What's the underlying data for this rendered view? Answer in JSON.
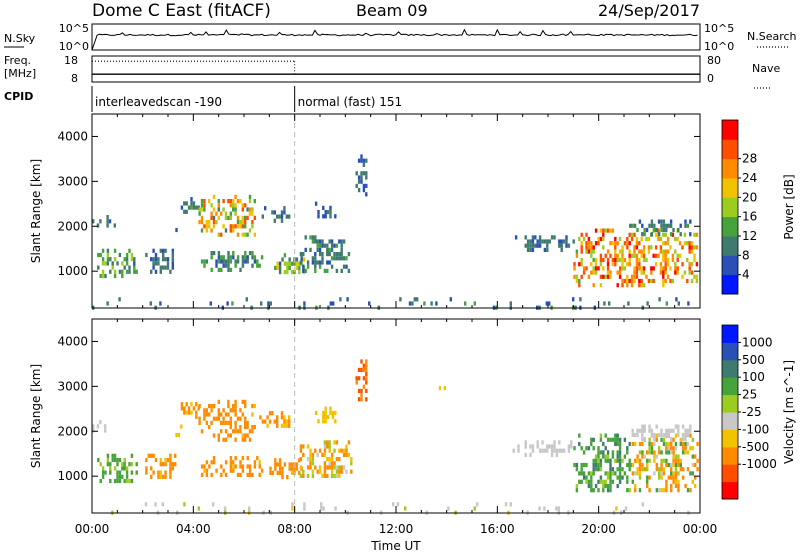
{
  "header": {
    "title": "Dome C East (fitACF)",
    "beam": "Beam 09",
    "date": "24/Sep/2017"
  },
  "top_panels": {
    "nsky_label": "N.Sky",
    "nsearch_label": "N.Search",
    "count_ticks_left": [
      "10^5",
      "10^0"
    ],
    "count_ticks_right": [
      "10^5",
      "10^0"
    ],
    "freq_label": "Freq.",
    "freq_unit": "[MHz]",
    "freq_ticks": [
      "18",
      "8"
    ],
    "nave_label": "Nave",
    "nave_ticks": [
      "80",
      "0"
    ],
    "cpid_label": "CPID",
    "cpid_segments": [
      {
        "start": 0,
        "end": 8,
        "label": "interleavedscan -190"
      },
      {
        "start": 8,
        "end": 24,
        "label": "normal (fast) 151"
      }
    ],
    "nsky_level": 0.55,
    "freq_dotted_level": 0.8,
    "freq_dotted_end": 8,
    "freq_solid_level": 0.3,
    "nave_level": 0.3
  },
  "x_axis": {
    "label": "Time UT",
    "ticks": [
      0,
      4,
      8,
      12,
      16,
      20,
      24
    ],
    "tick_labels": [
      "00:00",
      "04:00",
      "08:00",
      "12:00",
      "16:00",
      "20:00",
      "00:00"
    ],
    "range": [
      0,
      24
    ]
  },
  "chart_data": [
    {
      "type": "heatmap",
      "ylabel": "Slant Range [km]",
      "ylim": [
        180,
        4500
      ],
      "yticks": [
        1000,
        2000,
        3000,
        4000
      ],
      "colorbar": {
        "label": "Power [dB]",
        "ticks": [
          "4",
          "8",
          "12",
          "16",
          "20",
          "24",
          "28"
        ],
        "range": [
          0,
          32
        ],
        "colors": [
          "#0018ff",
          "#2a50b8",
          "#3f7a6e",
          "#46a33c",
          "#9ccc20",
          "#f2c200",
          "#ff8c00",
          "#ff4e00",
          "#ff0000"
        ]
      },
      "blobs": [
        {
          "t": [
            0.0,
            1.1
          ],
          "r": [
            2000,
            2250
          ],
          "v": [
            6,
            10
          ]
        },
        {
          "t": [
            0.2,
            1.8
          ],
          "r": [
            850,
            1500
          ],
          "v": [
            6,
            16
          ]
        },
        {
          "t": [
            2.1,
            3.3
          ],
          "r": [
            1000,
            1500
          ],
          "v": [
            6,
            10
          ]
        },
        {
          "t": [
            3.1,
            3.6
          ],
          "r": [
            1900,
            2150
          ],
          "v": [
            6,
            10
          ]
        },
        {
          "t": [
            3.5,
            4.2
          ],
          "r": [
            2300,
            2650
          ],
          "v": [
            6,
            12
          ]
        },
        {
          "t": [
            4.2,
            6.4
          ],
          "r": [
            1800,
            2700
          ],
          "v": [
            10,
            28
          ]
        },
        {
          "t": [
            4.3,
            6.7
          ],
          "r": [
            1050,
            1450
          ],
          "v": [
            6,
            14
          ]
        },
        {
          "t": [
            6.6,
            7.8
          ],
          "r": [
            2150,
            2450
          ],
          "v": [
            6,
            10
          ]
        },
        {
          "t": [
            7.0,
            8.4
          ],
          "r": [
            950,
            1400
          ],
          "v": [
            6,
            20
          ]
        },
        {
          "t": [
            8.2,
            10.2
          ],
          "r": [
            1000,
            1800
          ],
          "v": [
            6,
            12
          ]
        },
        {
          "t": [
            8.8,
            9.6
          ],
          "r": [
            2250,
            2550
          ],
          "v": [
            6,
            8
          ]
        },
        {
          "t": [
            10.4,
            10.8
          ],
          "r": [
            2700,
            3600
          ],
          "v": [
            6,
            8
          ]
        },
        {
          "t": [
            13.5,
            14.0
          ],
          "r": [
            2950,
            3100
          ],
          "v": [
            6,
            10
          ]
        },
        {
          "t": [
            16.6,
            19.0
          ],
          "r": [
            1500,
            1800
          ],
          "v": [
            6,
            10
          ]
        },
        {
          "t": [
            19.0,
            23.9
          ],
          "r": [
            650,
            1950
          ],
          "v": [
            14,
            30
          ]
        },
        {
          "t": [
            21.2,
            23.9
          ],
          "r": [
            1850,
            2150
          ],
          "v": [
            6,
            12
          ]
        },
        {
          "t": [
            0.0,
            24.0
          ],
          "r": [
            190,
            420
          ],
          "v": [
            4,
            12
          ]
        }
      ]
    },
    {
      "type": "heatmap",
      "ylabel": "Slant Range [km]",
      "ylim": [
        180,
        4500
      ],
      "yticks": [
        1000,
        2000,
        3000,
        4000
      ],
      "colorbar": {
        "label": "Velocity [m s^-1]",
        "ticks": [
          "1000",
          "500",
          "100",
          "25",
          "-25",
          "-100",
          "-500",
          "-1000"
        ],
        "range": [
          -1200,
          1200
        ],
        "colors": [
          "#ff0000",
          "#ff4e00",
          "#ff8c00",
          "#f2c200",
          "#c8c8c8",
          "#9ccc20",
          "#46a33c",
          "#3f7a6e",
          "#2a50b8",
          "#0018ff"
        ]
      },
      "blobs": [
        {
          "t": [
            0.0,
            1.1
          ],
          "r": [
            2000,
            2250
          ],
          "v": [
            -10,
            10
          ]
        },
        {
          "t": [
            0.2,
            1.8
          ],
          "r": [
            850,
            1500
          ],
          "v": [
            40,
            300
          ]
        },
        {
          "t": [
            2.1,
            3.3
          ],
          "r": [
            1000,
            1500
          ],
          "v": [
            -300,
            -60
          ]
        },
        {
          "t": [
            3.1,
            3.6
          ],
          "r": [
            1900,
            2150
          ],
          "v": [
            -80,
            -40
          ]
        },
        {
          "t": [
            3.5,
            4.2
          ],
          "r": [
            2300,
            2650
          ],
          "v": [
            -300,
            -60
          ]
        },
        {
          "t": [
            4.2,
            6.4
          ],
          "r": [
            1800,
            2700
          ],
          "v": [
            -500,
            -80
          ]
        },
        {
          "t": [
            4.3,
            6.7
          ],
          "r": [
            1050,
            1450
          ],
          "v": [
            -400,
            -80
          ]
        },
        {
          "t": [
            6.6,
            7.8
          ],
          "r": [
            2150,
            2450
          ],
          "v": [
            -300,
            -60
          ]
        },
        {
          "t": [
            7.0,
            8.4
          ],
          "r": [
            950,
            1400
          ],
          "v": [
            -500,
            -80
          ]
        },
        {
          "t": [
            8.2,
            10.2
          ],
          "r": [
            1000,
            1800
          ],
          "v": [
            -300,
            80
          ]
        },
        {
          "t": [
            8.8,
            9.6
          ],
          "r": [
            2250,
            2550
          ],
          "v": [
            -80,
            -40
          ]
        },
        {
          "t": [
            10.4,
            10.8
          ],
          "r": [
            2700,
            3600
          ],
          "v": [
            -800,
            -200
          ]
        },
        {
          "t": [
            13.5,
            14.0
          ],
          "r": [
            2950,
            3100
          ],
          "v": [
            -60,
            -30
          ]
        },
        {
          "t": [
            16.6,
            19.0
          ],
          "r": [
            1500,
            1800
          ],
          "v": [
            -20,
            20
          ]
        },
        {
          "t": [
            19.0,
            21.3
          ],
          "r": [
            650,
            1950
          ],
          "v": [
            40,
            600
          ]
        },
        {
          "t": [
            21.3,
            23.9
          ],
          "r": [
            650,
            1950
          ],
          "v": [
            -300,
            200
          ]
        },
        {
          "t": [
            21.2,
            23.9
          ],
          "r": [
            1850,
            2150
          ],
          "v": [
            -20,
            20
          ]
        },
        {
          "t": [
            0.0,
            24.0
          ],
          "r": [
            190,
            420
          ],
          "v": [
            -30,
            30
          ]
        }
      ]
    }
  ]
}
